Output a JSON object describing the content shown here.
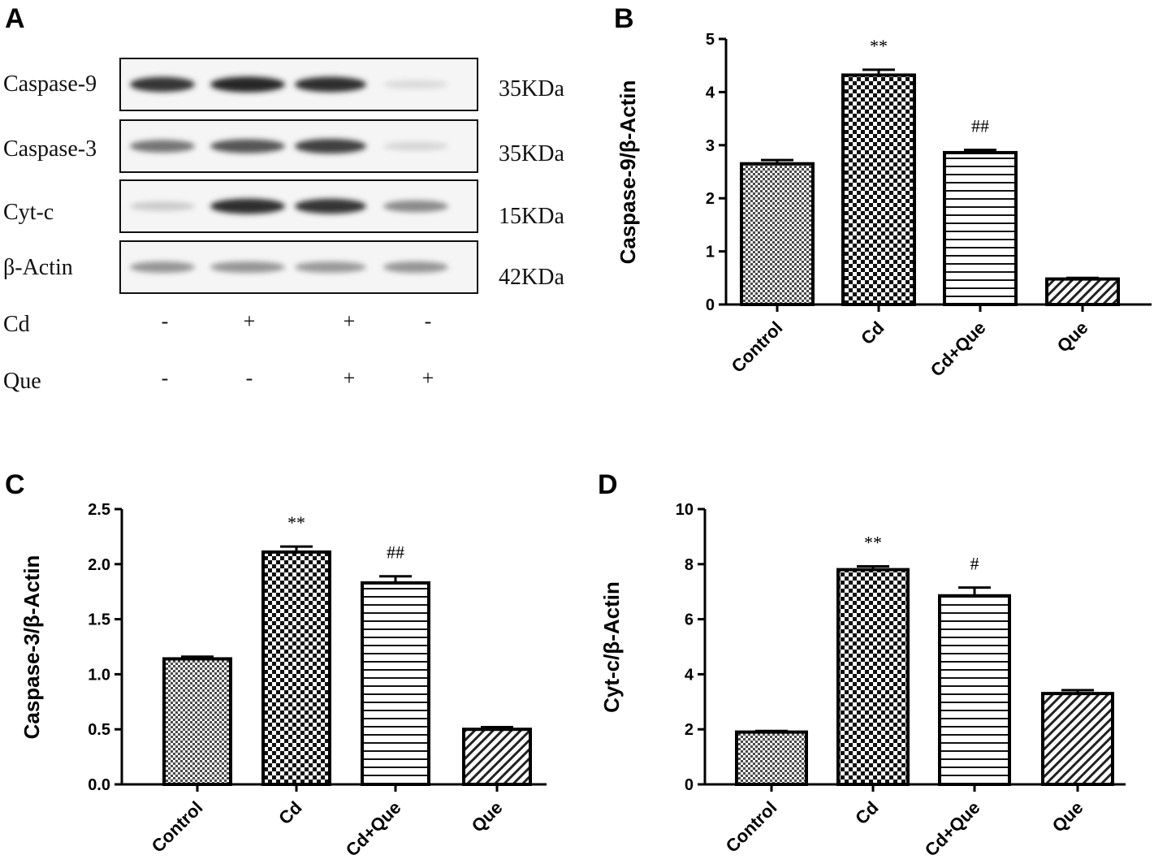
{
  "panel_letters": [
    "A",
    "B",
    "C",
    "D"
  ],
  "blot": {
    "rows": [
      {
        "label": "Caspase-9",
        "kda": "35KDa",
        "intensities": [
          0.85,
          0.92,
          0.88,
          0.08
        ]
      },
      {
        "label": "Caspase-3",
        "kda": "35KDa",
        "intensities": [
          0.55,
          0.7,
          0.8,
          0.1
        ]
      },
      {
        "label": "Cyt-c",
        "kda": "15KDa",
        "intensities": [
          0.15,
          0.88,
          0.85,
          0.45
        ]
      },
      {
        "label": "β-Actin",
        "kda": "42KDa",
        "intensities": [
          0.4,
          0.4,
          0.38,
          0.4
        ]
      }
    ],
    "treatments": [
      {
        "label": "Cd",
        "signs": [
          "-",
          "+",
          "+",
          "-"
        ]
      },
      {
        "label": "Que",
        "signs": [
          "-",
          "-",
          "+",
          "+"
        ]
      }
    ]
  },
  "chart_data": [
    {
      "panel": "B",
      "type": "bar",
      "categories": [
        "Control",
        "Cd",
        "Cd+Que",
        "Que"
      ],
      "values": [
        2.65,
        4.32,
        2.86,
        0.48
      ],
      "errors": [
        0.07,
        0.1,
        0.05,
        0.02
      ],
      "annotations": [
        "",
        "**",
        "##",
        ""
      ],
      "patterns": [
        "fine-check",
        "check",
        "hlines",
        "diag"
      ],
      "ylabel": "Caspase-9/β-Actin",
      "ylim": [
        0,
        5
      ],
      "yticks": [
        0,
        1,
        2,
        3,
        4,
        5
      ],
      "ytick_labels": [
        "0",
        "1",
        "2",
        "3",
        "4",
        "5"
      ]
    },
    {
      "panel": "C",
      "type": "bar",
      "categories": [
        "Control",
        "Cd",
        "Cd+Que",
        "Que"
      ],
      "values": [
        1.14,
        2.11,
        1.83,
        0.5
      ],
      "errors": [
        0.02,
        0.05,
        0.06,
        0.02
      ],
      "annotations": [
        "",
        "**",
        "##",
        ""
      ],
      "patterns": [
        "fine-check",
        "check",
        "hlines",
        "diag"
      ],
      "ylabel": "Caspase-3/β-Actin",
      "ylim": [
        0,
        2.5
      ],
      "yticks": [
        0,
        0.5,
        1,
        1.5,
        2,
        2.5
      ],
      "ytick_labels": [
        "0.0",
        "0.5",
        "1.0",
        "1.5",
        "2.0",
        "2.5"
      ]
    },
    {
      "panel": "D",
      "type": "bar",
      "categories": [
        "Control",
        "Cd",
        "Cd+Que",
        "Que"
      ],
      "values": [
        1.9,
        7.8,
        6.85,
        3.3
      ],
      "errors": [
        0.04,
        0.12,
        0.3,
        0.12
      ],
      "annotations": [
        "",
        "**",
        "#",
        ""
      ],
      "patterns": [
        "fine-check",
        "check",
        "hlines",
        "diag"
      ],
      "ylabel": "Cyt-c/β-Actin",
      "ylim": [
        0,
        10
      ],
      "yticks": [
        0,
        2,
        4,
        6,
        8,
        10
      ],
      "ytick_labels": [
        "0",
        "2",
        "4",
        "6",
        "8",
        "10"
      ]
    }
  ]
}
